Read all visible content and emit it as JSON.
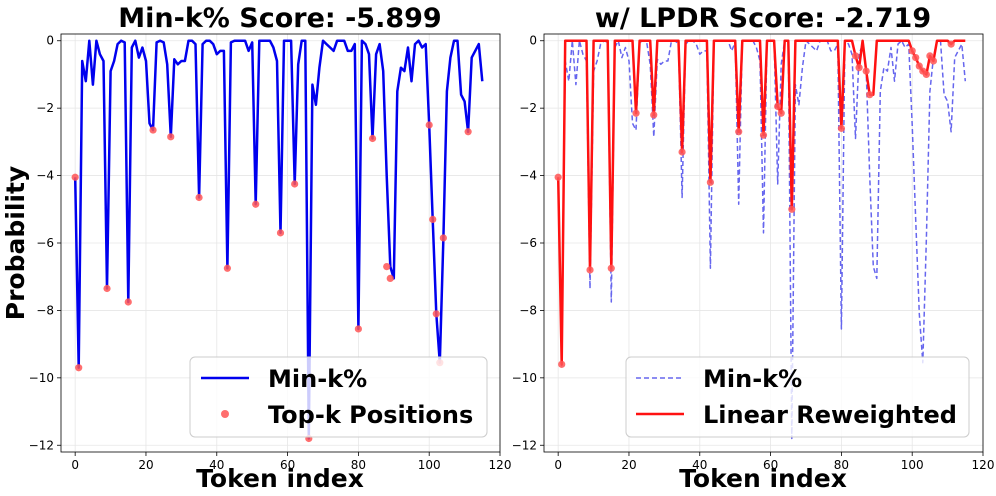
{
  "chart_data": [
    {
      "type": "line",
      "title": "Min-k% Score: -5.899",
      "xlabel": "Token index",
      "ylabel": "Probability",
      "xlim": [
        -4,
        120
      ],
      "ylim": [
        -12.2,
        0.2
      ],
      "xticks": [
        0,
        20,
        40,
        60,
        80,
        100,
        120
      ],
      "yticks": [
        0,
        -2,
        -4,
        -6,
        -8,
        -10,
        -12
      ],
      "grid": true,
      "legend_position": "lower-right",
      "series": [
        {
          "name": "Min-k%",
          "kind": "line",
          "color": "#0000ee",
          "x": [
            0,
            1,
            2,
            3,
            4,
            5,
            6,
            7,
            8,
            9,
            10,
            11,
            12,
            13,
            14,
            15,
            16,
            17,
            18,
            19,
            20,
            21,
            22,
            23,
            24,
            25,
            26,
            27,
            28,
            29,
            30,
            31,
            32,
            33,
            34,
            35,
            36,
            37,
            38,
            39,
            40,
            41,
            42,
            43,
            44,
            45,
            46,
            47,
            48,
            49,
            50,
            51,
            52,
            53,
            54,
            55,
            56,
            57,
            58,
            59,
            60,
            61,
            62,
            63,
            64,
            65,
            66,
            67,
            68,
            69,
            70,
            71,
            72,
            73,
            74,
            75,
            76,
            77,
            78,
            79,
            80,
            81,
            82,
            83,
            84,
            85,
            86,
            87,
            88,
            89,
            90,
            91,
            92,
            93,
            94,
            95,
            96,
            97,
            98,
            99,
            100,
            101,
            102,
            103,
            104,
            105,
            106,
            107,
            108,
            109,
            110,
            111,
            112,
            113,
            114,
            115
          ],
          "y": [
            -4.05,
            -9.7,
            -0.6,
            -1.2,
            0,
            -1.3,
            0,
            -0.4,
            -0.6,
            -7.35,
            -0.9,
            -0.6,
            -0.1,
            0,
            -0.05,
            -7.75,
            -0.2,
            0,
            -0.5,
            -0.2,
            -0.6,
            -2.45,
            -2.65,
            -0.05,
            0,
            -0.05,
            -0.7,
            -2.85,
            -0.55,
            -0.7,
            -0.6,
            -0.6,
            0,
            0,
            -0.1,
            -4.65,
            -0.1,
            0,
            0,
            -0.1,
            -0.4,
            -0.3,
            -0.3,
            -6.75,
            -0.05,
            0,
            0,
            0,
            0,
            -0.3,
            -0.05,
            -4.85,
            0,
            0,
            0,
            0,
            -0.2,
            -0.6,
            -5.7,
            0,
            0,
            0,
            -4.25,
            -0.7,
            0,
            0,
            -11.8,
            -1.3,
            -1.9,
            -0.8,
            0,
            -0.1,
            -0.2,
            -0.3,
            0,
            0,
            0,
            -0.3,
            -0.3,
            -0.1,
            -8.55,
            0,
            -0.1,
            -0.4,
            -2.9,
            -0.4,
            -0.1,
            -0.9,
            -4,
            -6.7,
            -7.05,
            -1.5,
            -0.8,
            -0.9,
            -0.2,
            -1.2,
            -0.1,
            0,
            -0.2,
            -0.1,
            -2.5,
            -5.3,
            -8.1,
            -9.55,
            -5.85,
            -1.5,
            -0.5,
            0,
            0,
            -1.6,
            -1.8,
            -2.7,
            -0.5,
            -0.3,
            -0.1,
            -1.2
          ]
        },
        {
          "name": "Top-k Positions",
          "kind": "scatter",
          "color": "#ff5555",
          "x": [
            0,
            1,
            9,
            15,
            22,
            27,
            35,
            43,
            51,
            58,
            62,
            66,
            80,
            84,
            88,
            89,
            100,
            101,
            102,
            103,
            104,
            111
          ],
          "y": [
            -4.05,
            -9.7,
            -7.35,
            -7.75,
            -2.65,
            -2.85,
            -4.65,
            -6.75,
            -4.85,
            -5.7,
            -4.25,
            -11.8,
            -8.55,
            -2.9,
            -6.7,
            -7.05,
            -2.5,
            -5.3,
            -8.1,
            -9.55,
            -5.85,
            -2.7
          ]
        }
      ]
    },
    {
      "type": "line",
      "title": "w/ LPDR Score: -2.719",
      "xlabel": "Token index",
      "ylabel": "",
      "xlim": [
        -4,
        120
      ],
      "ylim": [
        -12.2,
        0.2
      ],
      "xticks": [
        0,
        20,
        40,
        60,
        80,
        100,
        120
      ],
      "yticks": [
        0,
        -2,
        -4,
        -6,
        -8,
        -10,
        -12
      ],
      "grid": true,
      "legend_position": "lower-right",
      "series": [
        {
          "name": "Min-k%",
          "kind": "dashed-line",
          "color": "#6666ee",
          "x": [
            0,
            1,
            2,
            3,
            4,
            5,
            6,
            7,
            8,
            9,
            10,
            11,
            12,
            13,
            14,
            15,
            16,
            17,
            18,
            19,
            20,
            21,
            22,
            23,
            24,
            25,
            26,
            27,
            28,
            29,
            30,
            31,
            32,
            33,
            34,
            35,
            36,
            37,
            38,
            39,
            40,
            41,
            42,
            43,
            44,
            45,
            46,
            47,
            48,
            49,
            50,
            51,
            52,
            53,
            54,
            55,
            56,
            57,
            58,
            59,
            60,
            61,
            62,
            63,
            64,
            65,
            66,
            67,
            68,
            69,
            70,
            71,
            72,
            73,
            74,
            75,
            76,
            77,
            78,
            79,
            80,
            81,
            82,
            83,
            84,
            85,
            86,
            87,
            88,
            89,
            90,
            91,
            92,
            93,
            94,
            95,
            96,
            97,
            98,
            99,
            100,
            101,
            102,
            103,
            104,
            105,
            106,
            107,
            108,
            109,
            110,
            111,
            112,
            113,
            114,
            115
          ],
          "y": [
            -4.05,
            -9.7,
            -0.6,
            -1.2,
            0,
            -1.3,
            0,
            -0.4,
            -0.6,
            -7.35,
            -0.9,
            -0.6,
            -0.1,
            0,
            -0.05,
            -7.75,
            -0.2,
            0,
            -0.5,
            -0.2,
            -0.6,
            -2.45,
            -2.65,
            -0.05,
            0,
            -0.05,
            -0.7,
            -2.85,
            -0.55,
            -0.7,
            -0.6,
            -0.6,
            0,
            0,
            -0.1,
            -4.65,
            -0.1,
            0,
            0,
            -0.1,
            -0.4,
            -0.3,
            -0.3,
            -6.75,
            -0.05,
            0,
            0,
            0,
            0,
            -0.3,
            -0.05,
            -4.85,
            0,
            0,
            0,
            0,
            -0.2,
            -0.6,
            -5.7,
            0,
            0,
            0,
            -4.25,
            -0.7,
            0,
            0,
            -11.8,
            -1.3,
            -1.9,
            -0.8,
            0,
            -0.1,
            -0.2,
            -0.3,
            0,
            0,
            0,
            -0.3,
            -0.3,
            -0.1,
            -8.55,
            0,
            -0.1,
            -0.4,
            -2.9,
            -0.4,
            -0.1,
            -0.9,
            -4,
            -6.7,
            -7.05,
            -1.5,
            -0.8,
            -0.9,
            -0.2,
            -1.2,
            -0.1,
            0,
            -0.2,
            -0.1,
            -2.5,
            -5.3,
            -8.1,
            -9.55,
            -5.85,
            -1.5,
            -0.5,
            0,
            0,
            -1.6,
            -1.8,
            -2.7,
            -0.5,
            -0.3,
            -0.1,
            -1.2
          ]
        },
        {
          "name": "Linear Reweighted",
          "kind": "line-with-markers",
          "color": "#ff1111",
          "x": [
            0,
            1,
            2,
            3,
            4,
            5,
            6,
            7,
            8,
            9,
            10,
            11,
            12,
            13,
            14,
            15,
            16,
            17,
            18,
            19,
            20,
            21,
            22,
            23,
            24,
            25,
            26,
            27,
            28,
            29,
            30,
            31,
            32,
            33,
            34,
            35,
            36,
            37,
            38,
            39,
            40,
            41,
            42,
            43,
            44,
            45,
            46,
            47,
            48,
            49,
            50,
            51,
            52,
            53,
            54,
            55,
            56,
            57,
            58,
            59,
            60,
            61,
            62,
            63,
            64,
            65,
            66,
            67,
            68,
            69,
            70,
            71,
            72,
            73,
            74,
            75,
            76,
            77,
            78,
            79,
            80,
            81,
            82,
            83,
            84,
            85,
            86,
            87,
            88,
            89,
            90,
            91,
            92,
            93,
            94,
            95,
            96,
            97,
            98,
            99,
            100,
            101,
            102,
            103,
            104,
            105,
            106,
            107,
            108,
            109,
            110,
            111,
            112,
            113,
            114,
            115
          ],
          "y": [
            -4.05,
            -9.6,
            0,
            0,
            0,
            0,
            0,
            0,
            0,
            -6.8,
            0,
            0,
            0,
            0,
            0,
            -6.75,
            0,
            0,
            0,
            0,
            0,
            0,
            -2.15,
            0,
            0,
            0,
            0,
            -2.2,
            0,
            0,
            0,
            0,
            0,
            0,
            0,
            -3.3,
            0,
            0,
            0,
            0,
            0,
            0,
            0,
            -4.2,
            0,
            0,
            0,
            0,
            0,
            0,
            0,
            -2.7,
            0,
            0,
            0,
            0,
            0,
            0,
            -2.8,
            0,
            0,
            0,
            -1.95,
            -2.15,
            0,
            0,
            -5,
            0,
            0,
            0,
            0,
            0,
            0,
            0,
            0,
            0,
            0,
            0,
            0,
            0,
            -2.6,
            0,
            0,
            0,
            -0.45,
            -0.8,
            0,
            -0.9,
            -1.6,
            -1.6,
            0,
            0,
            0,
            0,
            0,
            0,
            0,
            0,
            0,
            0,
            -0.3,
            -0.5,
            -0.75,
            -0.9,
            -1.0,
            -0.45,
            -0.6,
            0,
            0,
            0,
            0,
            -0.1,
            0,
            0,
            0,
            0
          ]
        }
      ],
      "marker_points": {
        "x": [
          0,
          1,
          9,
          15,
          22,
          27,
          35,
          43,
          51,
          58,
          62,
          63,
          66,
          80,
          84,
          85,
          87,
          88,
          100,
          101,
          102,
          103,
          104,
          105,
          106,
          111
        ],
        "y": [
          -4.05,
          -9.6,
          -6.8,
          -6.75,
          -2.15,
          -2.2,
          -3.3,
          -4.2,
          -2.7,
          -2.8,
          -1.95,
          -2.15,
          -5,
          -2.6,
          -0.45,
          -0.8,
          -0.9,
          -1.6,
          -0.3,
          -0.5,
          -0.75,
          -0.9,
          -1.0,
          -0.45,
          -0.6,
          -0.1
        ]
      }
    }
  ]
}
